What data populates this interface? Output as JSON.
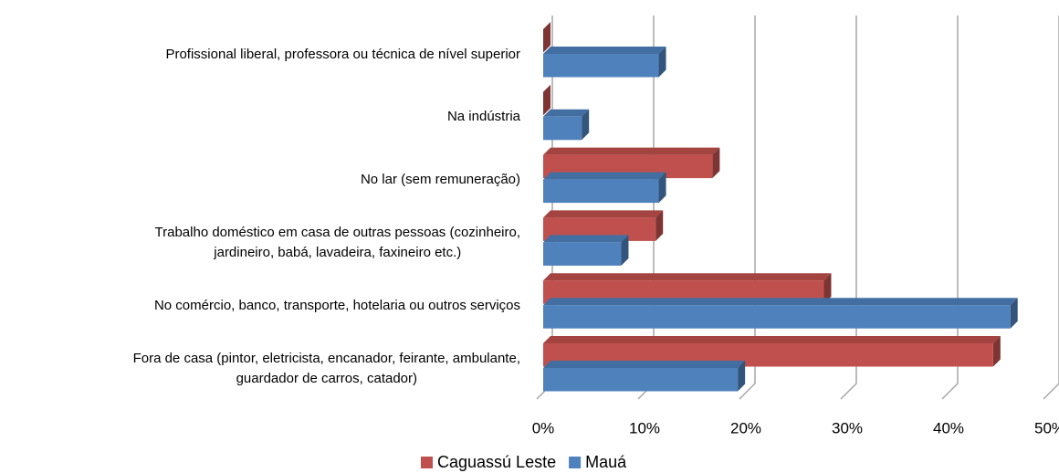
{
  "chart_data": {
    "type": "bar3d",
    "orientation": "horizontal",
    "categories": [
      "Profissional liberal, professora ou técnica de nível superior",
      "Na indústria",
      "No lar (sem remuneração)",
      "Trabalho doméstico em casa de outras pessoas (cozinheiro,\njardineiro, babá, lavadeira, faxineiro etc.)",
      "No comércio, banco, transporte, hotelaria ou outros serviços",
      "Fora de casa (pintor, eletricista, encanador, feirante, ambulante,\nguardador de carros, catador)"
    ],
    "series": [
      {
        "name": "Caguassú Leste",
        "color": "#c0504d",
        "values": [
          0,
          0,
          16.7,
          11.1,
          27.7,
          44.4
        ]
      },
      {
        "name": "Mauá",
        "color": "#4f81bd",
        "values": [
          11.4,
          3.8,
          11.4,
          7.7,
          46.1,
          19.2
        ]
      }
    ],
    "xlim": [
      0,
      50
    ],
    "xticks": [
      {
        "value": 0,
        "label": "0%"
      },
      {
        "value": 10,
        "label": "10%"
      },
      {
        "value": 20,
        "label": "20%"
      },
      {
        "value": 30,
        "label": "30%"
      },
      {
        "value": 40,
        "label": "40%"
      },
      {
        "value": 50,
        "label": "50%"
      }
    ],
    "grid": true,
    "legend": "bottom"
  }
}
